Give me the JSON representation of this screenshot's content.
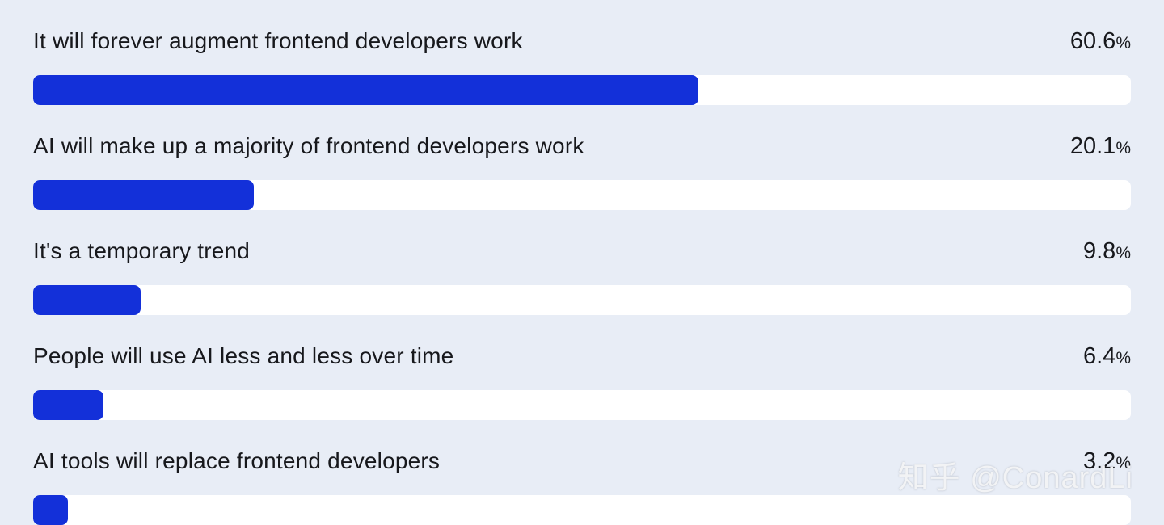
{
  "chart_data": {
    "type": "bar",
    "orientation": "horizontal",
    "categories": [
      "It will forever augment frontend developers work",
      "AI will make up a majority of frontend developers work",
      "It's a temporary trend",
      "People will use AI less and less over time",
      "AI tools will replace frontend developers"
    ],
    "values": [
      60.6,
      20.1,
      9.8,
      6.4,
      3.2
    ],
    "value_labels": [
      "60.6",
      "20.1",
      "9.8",
      "6.4",
      "3.2"
    ],
    "unit": "%",
    "xlim": [
      0,
      100
    ],
    "grid": false,
    "legend": "none"
  },
  "colors": {
    "background": "#e8edf6",
    "bar_fill": "#1330d9",
    "bar_track": "#ffffff",
    "text": "#17181c",
    "watermark": "#f2f3f5"
  },
  "watermark": "知乎 @ConardLi"
}
